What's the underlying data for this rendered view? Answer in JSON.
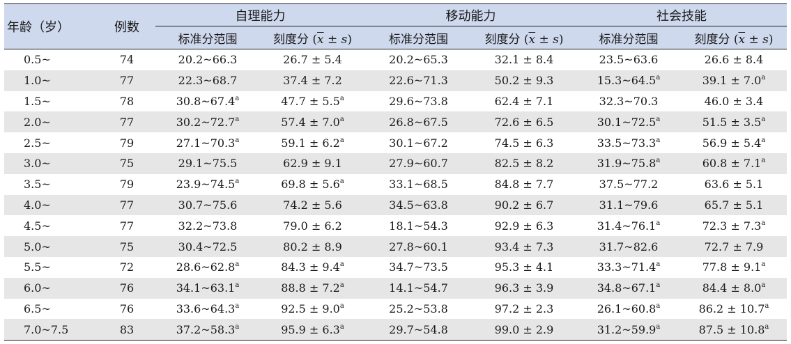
{
  "header": {
    "age_label": "年龄（岁）",
    "count_label": "例数",
    "groups": [
      "自理能力",
      "移动能力",
      "社会技能"
    ],
    "range_label": "标准分范围",
    "score_label_prefix": "刻度分 (",
    "score_xbar": "x",
    "score_pm": " ± ",
    "score_s": "s",
    "score_close": ")"
  },
  "rows": [
    {
      "age": "0.5~",
      "n": "74",
      "cells": [
        {
          "v": "20.2~66.3",
          "m": ""
        },
        {
          "v": "26.7 ± 5.4",
          "m": ""
        },
        {
          "v": "20.2~65.3",
          "m": ""
        },
        {
          "v": "32.1 ± 8.4",
          "m": ""
        },
        {
          "v": "23.5~63.6",
          "m": ""
        },
        {
          "v": "26.6 ± 8.4",
          "m": ""
        }
      ]
    },
    {
      "age": "1.0~",
      "n": "77",
      "cells": [
        {
          "v": "22.3~68.7",
          "m": ""
        },
        {
          "v": "37.4 ± 7.2",
          "m": ""
        },
        {
          "v": "22.6~71.3",
          "m": ""
        },
        {
          "v": "50.2 ± 9.3",
          "m": ""
        },
        {
          "v": "15.3~64.5",
          "m": "a"
        },
        {
          "v": "39.1 ± 7.0",
          "m": "a"
        }
      ]
    },
    {
      "age": "1.5~",
      "n": "78",
      "cells": [
        {
          "v": "30.8~67.4",
          "m": "a"
        },
        {
          "v": "47.7 ± 5.5",
          "m": "a"
        },
        {
          "v": "29.6~73.8",
          "m": ""
        },
        {
          "v": "62.4 ± 7.1",
          "m": ""
        },
        {
          "v": "32.3~70.3",
          "m": ""
        },
        {
          "v": "46.0 ± 3.4",
          "m": ""
        }
      ]
    },
    {
      "age": "2.0~",
      "n": "77",
      "cells": [
        {
          "v": "30.2~72.7",
          "m": "a"
        },
        {
          "v": "57.4 ± 7.0",
          "m": "a"
        },
        {
          "v": "26.8~67.5",
          "m": ""
        },
        {
          "v": "72.6 ± 6.5",
          "m": ""
        },
        {
          "v": "30.1~72.5",
          "m": "a"
        },
        {
          "v": "51.5 ± 3.5",
          "m": "a"
        }
      ]
    },
    {
      "age": "2.5~",
      "n": "79",
      "cells": [
        {
          "v": "27.1~70.3",
          "m": "a"
        },
        {
          "v": "59.1 ± 6.2",
          "m": "a"
        },
        {
          "v": "30.1~67.2",
          "m": ""
        },
        {
          "v": "74.5 ± 6.3",
          "m": ""
        },
        {
          "v": "33.5~73.3",
          "m": "a"
        },
        {
          "v": "56.9 ± 5.4",
          "m": "a"
        }
      ]
    },
    {
      "age": "3.0~",
      "n": "75",
      "cells": [
        {
          "v": "29.1~75.5",
          "m": ""
        },
        {
          "v": "62.9 ± 9.1",
          "m": ""
        },
        {
          "v": "27.9~60.7",
          "m": ""
        },
        {
          "v": "82.5 ± 8.2",
          "m": ""
        },
        {
          "v": "31.9~75.8",
          "m": "a"
        },
        {
          "v": "60.8 ± 7.1",
          "m": "a"
        }
      ]
    },
    {
      "age": "3.5~",
      "n": "79",
      "cells": [
        {
          "v": "23.9~74.5",
          "m": "a"
        },
        {
          "v": "69.8 ± 5.6",
          "m": "a"
        },
        {
          "v": "33.1~68.5",
          "m": ""
        },
        {
          "v": "84.8 ± 7.7",
          "m": ""
        },
        {
          "v": "37.5~77.2",
          "m": ""
        },
        {
          "v": "63.6 ± 5.1",
          "m": ""
        }
      ]
    },
    {
      "age": "4.0~",
      "n": "77",
      "cells": [
        {
          "v": "30.7~75.6",
          "m": ""
        },
        {
          "v": "74.2 ± 5.6",
          "m": ""
        },
        {
          "v": "34.5~63.8",
          "m": ""
        },
        {
          "v": "90.2 ± 6.7",
          "m": ""
        },
        {
          "v": "31.1~79.6",
          "m": ""
        },
        {
          "v": "65.7 ± 5.1",
          "m": ""
        }
      ]
    },
    {
      "age": "4.5~",
      "n": "77",
      "cells": [
        {
          "v": "32.2~73.8",
          "m": ""
        },
        {
          "v": "79.0 ± 6.2",
          "m": ""
        },
        {
          "v": "18.1~54.3",
          "m": ""
        },
        {
          "v": "92.9 ± 6.3",
          "m": ""
        },
        {
          "v": "31.4~76.1",
          "m": "a"
        },
        {
          "v": "72.3 ± 7.3",
          "m": "a"
        }
      ]
    },
    {
      "age": "5.0~",
      "n": "75",
      "cells": [
        {
          "v": "30.4~72.5",
          "m": ""
        },
        {
          "v": "80.2 ± 8.9",
          "m": ""
        },
        {
          "v": "27.8~60.1",
          "m": ""
        },
        {
          "v": "93.4 ± 7.3",
          "m": ""
        },
        {
          "v": "31.7~82.6",
          "m": ""
        },
        {
          "v": "72.7 ± 7.9",
          "m": ""
        }
      ]
    },
    {
      "age": "5.5~",
      "n": "72",
      "cells": [
        {
          "v": "28.6~62.8",
          "m": "a"
        },
        {
          "v": "84.3 ± 9.4",
          "m": "a"
        },
        {
          "v": "34.7~73.5",
          "m": ""
        },
        {
          "v": "95.3 ± 4.1",
          "m": ""
        },
        {
          "v": "33.3~71.4",
          "m": "a"
        },
        {
          "v": "77.8 ± 9.1",
          "m": "a"
        }
      ]
    },
    {
      "age": "6.0~",
      "n": "76",
      "cells": [
        {
          "v": "34.1~63.1",
          "m": "a"
        },
        {
          "v": "88.8 ± 7.2",
          "m": "a"
        },
        {
          "v": "14.1~54.7",
          "m": ""
        },
        {
          "v": "96.3 ± 3.9",
          "m": ""
        },
        {
          "v": "34.8~67.1",
          "m": "a"
        },
        {
          "v": "84.4 ± 8.0",
          "m": "a"
        }
      ]
    },
    {
      "age": "6.5~",
      "n": "76",
      "cells": [
        {
          "v": "33.6~64.3",
          "m": "a"
        },
        {
          "v": "92.5 ± 9.0",
          "m": "a"
        },
        {
          "v": "25.2~53.8",
          "m": ""
        },
        {
          "v": "97.2 ± 2.3",
          "m": ""
        },
        {
          "v": "26.1~60.8",
          "m": "a"
        },
        {
          "v": "86.2 ± 10.7",
          "m": "a"
        }
      ]
    },
    {
      "age": "7.0~7.5",
      "n": "83",
      "cells": [
        {
          "v": "37.2~58.3",
          "m": "a"
        },
        {
          "v": "95.9 ± 6.3",
          "m": "a"
        },
        {
          "v": "29.7~54.8",
          "m": ""
        },
        {
          "v": "99.0 ± 2.9",
          "m": ""
        },
        {
          "v": "31.2~59.9",
          "m": "a"
        },
        {
          "v": "87.5 ± 10.8",
          "m": "a"
        }
      ]
    }
  ]
}
